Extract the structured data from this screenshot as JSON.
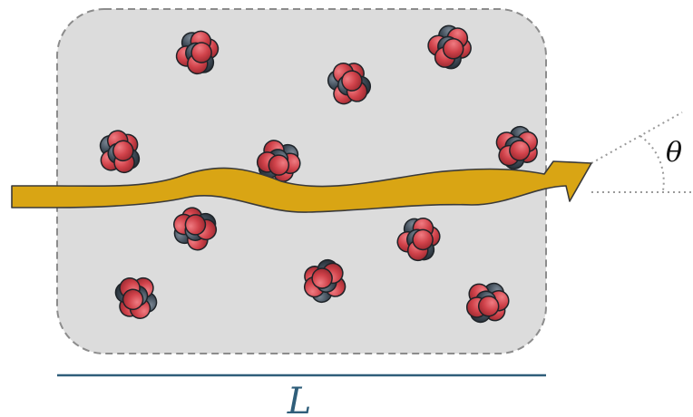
{
  "figure": {
    "length_label": "L",
    "angle_label": "θ"
  },
  "colors": {
    "medium_fill": "#dcdcdc",
    "medium_border": "#8c8c8c",
    "beam": "#d9a514",
    "beam_outline": "#3a3a3a",
    "proton": "#d0424a",
    "neutron": "#3f4b57",
    "length_line": "#2f5e7a",
    "angle_guides": "#9a9a9a"
  },
  "icons": [
    "nucleus-icon",
    "arrow-icon"
  ]
}
